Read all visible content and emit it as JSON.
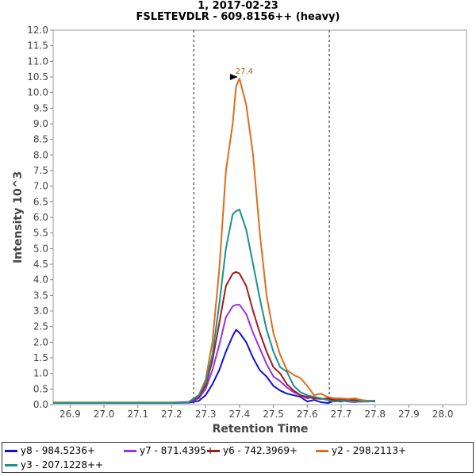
{
  "chart_data": {
    "type": "line",
    "title": "1, 2017-02-23",
    "subtitle": "FSLETEVDLR - 609.8156++ (heavy)",
    "xlabel": "Retention Time",
    "ylabel": "Intensity 10^3",
    "xlim": [
      26.85,
      28.07
    ],
    "ylim": [
      0,
      12.0
    ],
    "x_ticks": [
      "26.9",
      "27.0",
      "27.1",
      "27.2",
      "27.3",
      "27.4",
      "27.5",
      "27.6",
      "27.7",
      "27.8",
      "27.9",
      "28.0"
    ],
    "y_ticks": [
      "0.0",
      "0.5",
      "1.0",
      "1.5",
      "2.0",
      "2.5",
      "3.0",
      "3.5",
      "4.0",
      "4.5",
      "5.0",
      "5.5",
      "6.0",
      "6.5",
      "7.0",
      "7.5",
      "8.0",
      "8.5",
      "9.0",
      "9.5",
      "10.0",
      "10.5",
      "11.0",
      "11.5",
      "12.0"
    ],
    "integration_bounds": [
      27.265,
      27.665
    ],
    "peak_annotation": {
      "label": "27.4",
      "x": 27.4,
      "y": 10.5,
      "color": "#c45a10"
    },
    "x": [
      26.85,
      26.9,
      26.95,
      27.0,
      27.05,
      27.1,
      27.15,
      27.2,
      27.25,
      27.28,
      27.3,
      27.32,
      27.34,
      27.36,
      27.38,
      27.39,
      27.4,
      27.42,
      27.44,
      27.46,
      27.48,
      27.5,
      27.52,
      27.54,
      27.56,
      27.58,
      27.6,
      27.62,
      27.64,
      27.66,
      27.68,
      27.7,
      27.72,
      27.74,
      27.76,
      27.78,
      27.8
    ],
    "series": [
      {
        "name": "y8 - 984.5236+",
        "color": "#1010d8",
        "values": [
          0.06,
          0.05,
          0.05,
          0.05,
          0.06,
          0.05,
          0.05,
          0.05,
          0.06,
          0.12,
          0.3,
          0.65,
          1.1,
          1.7,
          2.2,
          2.4,
          2.3,
          2.0,
          1.5,
          1.1,
          0.9,
          0.6,
          0.45,
          0.35,
          0.3,
          0.25,
          0.1,
          0.15,
          0.08,
          0.05,
          0.12,
          0.1,
          0.15,
          0.12,
          0.1,
          0.12,
          0.1
        ]
      },
      {
        "name": "y7 - 871.4395+",
        "color": "#9a32e0",
        "values": [
          0.05,
          0.05,
          0.05,
          0.05,
          0.05,
          0.05,
          0.05,
          0.05,
          0.07,
          0.2,
          0.5,
          1.1,
          1.9,
          2.8,
          3.15,
          3.2,
          3.2,
          2.9,
          2.3,
          1.8,
          1.3,
          0.9,
          0.75,
          0.55,
          0.4,
          0.3,
          0.2,
          0.25,
          0.2,
          0.15,
          0.1,
          0.12,
          0.1,
          0.08,
          0.1,
          0.1,
          0.12
        ]
      },
      {
        "name": "y6 - 742.3969+",
        "color": "#a01c1c",
        "values": [
          0.06,
          0.06,
          0.06,
          0.06,
          0.06,
          0.06,
          0.06,
          0.06,
          0.08,
          0.25,
          0.6,
          1.4,
          2.6,
          3.8,
          4.2,
          4.25,
          4.2,
          3.8,
          3.0,
          2.3,
          1.7,
          1.2,
          1.0,
          0.65,
          0.45,
          0.3,
          0.25,
          0.2,
          0.18,
          0.2,
          0.15,
          0.15,
          0.15,
          0.15,
          0.12,
          0.12,
          0.12
        ]
      },
      {
        "name": "y2 - 298.2113+",
        "color": "#e06c1a",
        "values": [
          0.07,
          0.07,
          0.07,
          0.07,
          0.07,
          0.07,
          0.07,
          0.07,
          0.09,
          0.3,
          0.8,
          2.0,
          4.3,
          7.5,
          9.0,
          10.2,
          10.45,
          9.6,
          8.0,
          5.5,
          3.5,
          2.3,
          1.6,
          1.1,
          0.95,
          0.85,
          0.6,
          0.3,
          0.35,
          0.25,
          0.2,
          0.2,
          0.18,
          0.2,
          0.15,
          0.12,
          0.12
        ]
      },
      {
        "name": "y3 - 207.1228++",
        "color": "#1a9090",
        "values": [
          0.05,
          0.05,
          0.05,
          0.05,
          0.05,
          0.05,
          0.05,
          0.05,
          0.08,
          0.3,
          0.7,
          1.6,
          3.2,
          5.0,
          6.1,
          6.2,
          6.25,
          5.6,
          4.5,
          3.4,
          2.4,
          1.7,
          1.2,
          1.05,
          0.6,
          0.4,
          0.3,
          0.25,
          0.2,
          0.15,
          0.1,
          0.12,
          0.12,
          0.1,
          0.1,
          0.1,
          0.12
        ]
      }
    ]
  }
}
